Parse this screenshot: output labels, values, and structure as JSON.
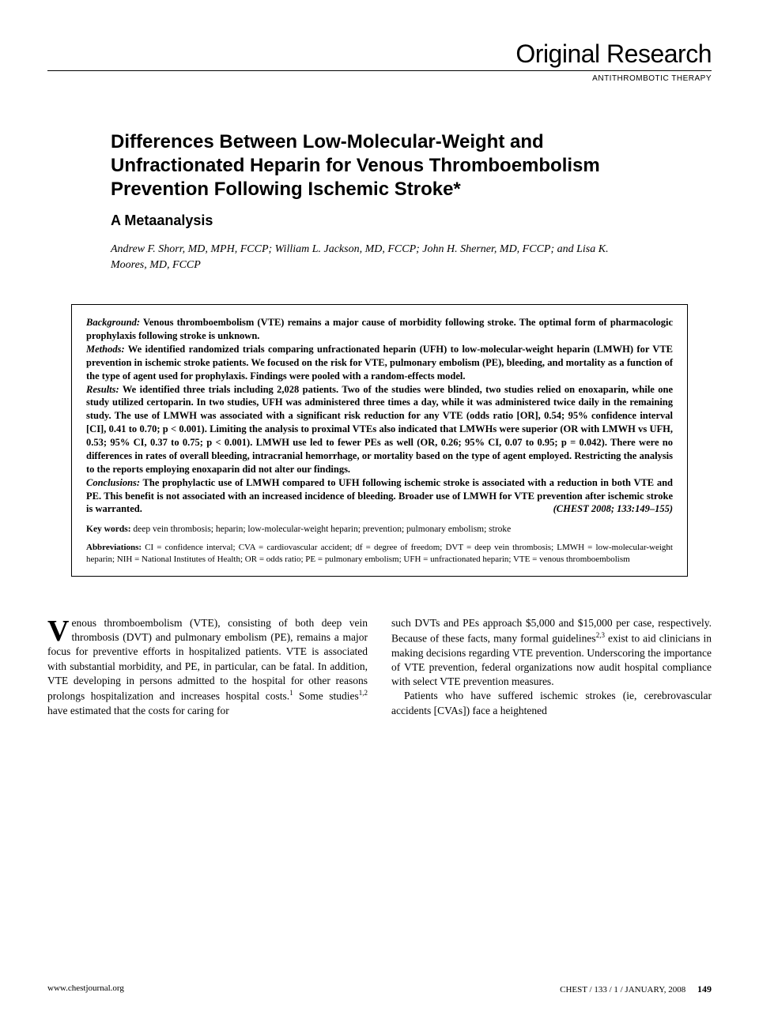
{
  "header": {
    "section_title": "Original Research",
    "subsection": "ANTITHROMBOTIC THERAPY"
  },
  "article": {
    "title": "Differences Between Low-Molecular-Weight and Unfractionated Heparin for Venous Thromboembolism Prevention Following Ischemic Stroke*",
    "subtitle": "A Metaanalysis",
    "authors": "Andrew F. Shorr, MD, MPH, FCCP; William L. Jackson, MD, FCCP; John H. Sherner, MD, FCCP; and Lisa K. Moores, MD, FCCP"
  },
  "abstract": {
    "background_label": "Background:",
    "background": " Venous thromboembolism (VTE) remains a major cause of morbidity following stroke. The optimal form of pharmacologic prophylaxis following stroke is unknown.",
    "methods_label": "Methods:",
    "methods": " We identified randomized trials comparing unfractionated heparin (UFH) to low-molecular-weight heparin (LMWH) for VTE prevention in ischemic stroke patients. We focused on the risk for VTE, pulmonary embolism (PE), bleeding, and mortality as a function of the type of agent used for prophylaxis. Findings were pooled with a random-effects model.",
    "results_label": "Results:",
    "results": " We identified three trials including 2,028 patients. Two of the studies were blinded, two studies relied on enoxaparin, while one study utilized certoparin. In two studies, UFH was administered three times a day, while it was administered twice daily in the remaining study. The use of LMWH was associated with a significant risk reduction for any VTE (odds ratio [OR], 0.54; 95% confidence interval [CI], 0.41 to 0.70; p < 0.001). Limiting the analysis to proximal VTEs also indicated that LMWHs were superior (OR with LMWH vs UFH, 0.53; 95% CI, 0.37 to 0.75; p < 0.001). LMWH use led to fewer PEs as well (OR, 0.26; 95% CI, 0.07 to 0.95; p = 0.042). There were no differences in rates of overall bleeding, intracranial hemorrhage, or mortality based on the type of agent employed. Restricting the analysis to the reports employing enoxaparin did not alter our findings.",
    "conclusions_label": "Conclusions:",
    "conclusions": " The prophylactic use of LMWH compared to UFH following ischemic stroke is associated with a reduction in both VTE and PE. This benefit is not associated with an increased incidence of bleeding. Broader use of LMWH for VTE prevention after ischemic stroke is warranted.",
    "citation": "(CHEST 2008; 133:149–155)",
    "keywords_label": "Key words:",
    "keywords": " deep vein thrombosis; heparin; low-molecular-weight heparin; prevention; pulmonary embolism; stroke",
    "abbreviations_label": "Abbreviations:",
    "abbreviations": " CI = confidence interval; CVA = cardiovascular accident; df = degree of freedom; DVT = deep vein thrombosis; LMWH = low-molecular-weight heparin; NIH = National Institutes of Health; OR = odds ratio; PE = pulmonary embolism; UFH = unfractionated heparin; VTE = venous thromboembolism"
  },
  "body": {
    "col1_dropcap": "V",
    "col1_first": "enous thromboembolism (VTE), consisting of both deep vein thrombosis (DVT) and pulmonary embolism (PE), remains a major focus for preventive efforts in hospitalized patients. VTE is associated with substantial morbidity, and PE, in particular, can be fatal. In addition, VTE developing in persons admitted to the hospital for other reasons prolongs hospitalization and increases hospital costs.",
    "col1_sup1": "1",
    "col1_after_sup1": " Some studies",
    "col1_sup2": "1,2",
    "col1_after_sup2": " have estimated that the costs for caring for",
    "col2_first": "such DVTs and PEs approach $5,000 and $15,000 per case, respectively. Because of these facts, many formal guidelines",
    "col2_sup1": "2,3",
    "col2_after_sup1": " exist to aid clinicians in making decisions regarding VTE prevention. Underscoring the importance of VTE prevention, federal organizations now audit hospital compliance with select VTE prevention measures.",
    "col2_p2": "Patients who have suffered ischemic strokes (ie, cerebrovascular accidents [CVAs]) face a heightened"
  },
  "footer": {
    "url": "www.chestjournal.org",
    "journal": "CHEST / 133 / 1 / JANUARY, 2008",
    "page": "149"
  },
  "style": {
    "background_color": "#ffffff",
    "text_color": "#000000",
    "rule_color": "#000000"
  }
}
